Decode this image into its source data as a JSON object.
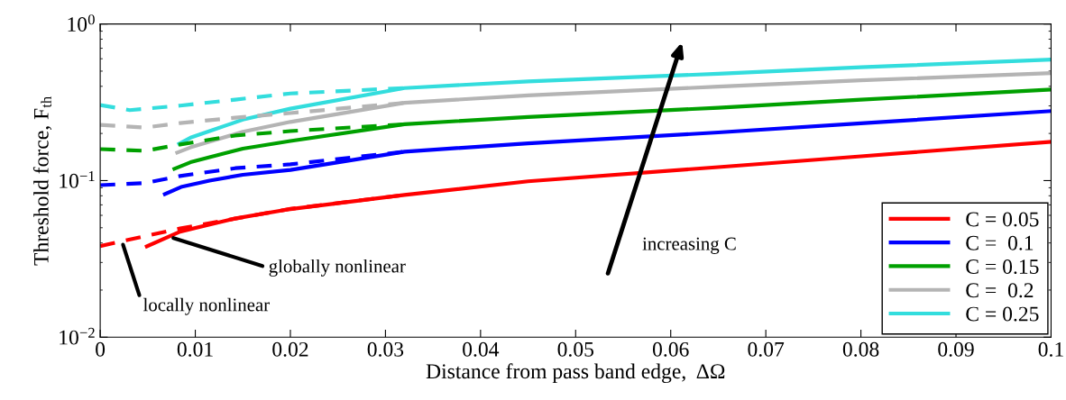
{
  "chart_data": {
    "type": "line",
    "xlabel": "Distance from pass band edge,  ΔΩ",
    "ylabel": "Threshold force, F$_{th}$",
    "log": "y",
    "xlim": [
      0,
      0.1
    ],
    "xticks": [
      0,
      0.01,
      0.02,
      0.03,
      0.04,
      0.05,
      0.06,
      0.07,
      0.08,
      0.09,
      0.1
    ],
    "ylim": [
      0.01,
      1
    ],
    "yticks": [
      {
        "value": 0.01,
        "label": "10$^{−2}$"
      },
      {
        "value": 0.1,
        "label": "10$^{−1}$"
      },
      {
        "value": 1,
        "label": "10$^{0}$"
      }
    ],
    "grid": false,
    "legend": "bottom right",
    "marker": "none",
    "series": [
      {
        "name": "C = 0.05",
        "color": "#ff0000",
        "line_style": "solid",
        "x": [
          0.0049,
          0.0084,
          0.014,
          0.02,
          0.032,
          0.045,
          0.065,
          0.08,
          0.1
        ],
        "values": [
          0.038,
          0.0472,
          0.057,
          0.0658,
          0.081,
          0.099,
          0.122,
          0.143,
          0.177
        ]
      },
      {
        "name": "C =  0.1",
        "color": "#0000ff",
        "line_style": "solid",
        "x": [
          0.0068,
          0.0085,
          0.0115,
          0.015,
          0.02,
          0.032,
          0.045,
          0.065,
          0.08,
          0.1
        ],
        "values": [
          0.082,
          0.091,
          0.1,
          0.109,
          0.117,
          0.153,
          0.173,
          0.203,
          0.232,
          0.278
        ]
      },
      {
        "name": "C = 0.15",
        "color": "#00a000",
        "line_style": "solid",
        "x": [
          0.0078,
          0.0095,
          0.0115,
          0.015,
          0.02,
          0.032,
          0.045,
          0.065,
          0.08,
          0.1
        ],
        "values": [
          0.119,
          0.131,
          0.141,
          0.16,
          0.179,
          0.229,
          0.255,
          0.292,
          0.329,
          0.381
        ]
      },
      {
        "name": "C =  0.2",
        "color": "#b4b4b4",
        "line_style": "solid",
        "x": [
          0.0081,
          0.0095,
          0.0115,
          0.015,
          0.02,
          0.032,
          0.045,
          0.065,
          0.08,
          0.1
        ],
        "values": [
          0.151,
          0.163,
          0.177,
          0.205,
          0.237,
          0.314,
          0.35,
          0.398,
          0.437,
          0.486
        ]
      },
      {
        "name": "C = 0.25",
        "color": "#33dddd",
        "line_style": "solid",
        "x": [
          0.0083,
          0.0095,
          0.0115,
          0.015,
          0.02,
          0.032,
          0.045,
          0.065,
          0.08,
          0.1
        ],
        "values": [
          0.172,
          0.188,
          0.207,
          0.245,
          0.288,
          0.39,
          0.43,
          0.481,
          0.53,
          0.592
        ]
      },
      {
        "color": "#ff0000",
        "line_style": "dashed",
        "x": [
          0,
          0.0084,
          0.02,
          0.032
        ],
        "values": [
          0.0382,
          0.0495,
          0.066,
          0.081
        ]
      },
      {
        "color": "#0000ff",
        "line_style": "dashed",
        "x": [
          0,
          0.0047,
          0.0084,
          0.0142,
          0.02,
          0.032
        ],
        "values": [
          0.0935,
          0.0965,
          0.107,
          0.12,
          0.127,
          0.153
        ]
      },
      {
        "color": "#00a000",
        "line_style": "dashed",
        "x": [
          0,
          0.0047,
          0.0084,
          0.0142,
          0.02,
          0.032
        ],
        "values": [
          0.159,
          0.155,
          0.17,
          0.194,
          0.207,
          0.229
        ]
      },
      {
        "color": "#b4b4b4",
        "line_style": "dashed",
        "x": [
          0,
          0.0047,
          0.0084,
          0.0142,
          0.02,
          0.032
        ],
        "values": [
          0.227,
          0.218,
          0.233,
          0.252,
          0.27,
          0.314
        ]
      },
      {
        "color": "#33dddd",
        "line_style": "dashed",
        "x": [
          0,
          0.0031,
          0.0084,
          0.0142,
          0.02,
          0.032
        ],
        "values": [
          0.304,
          0.282,
          0.301,
          0.329,
          0.36,
          0.39
        ]
      }
    ],
    "annotations": [
      {
        "text": "globally nonlinear",
        "x": 0.0077,
        "y": 0.043
      },
      {
        "text": "locally nonlinear",
        "x": 0.0024,
        "y": 0.039
      },
      "increasing C"
    ]
  }
}
